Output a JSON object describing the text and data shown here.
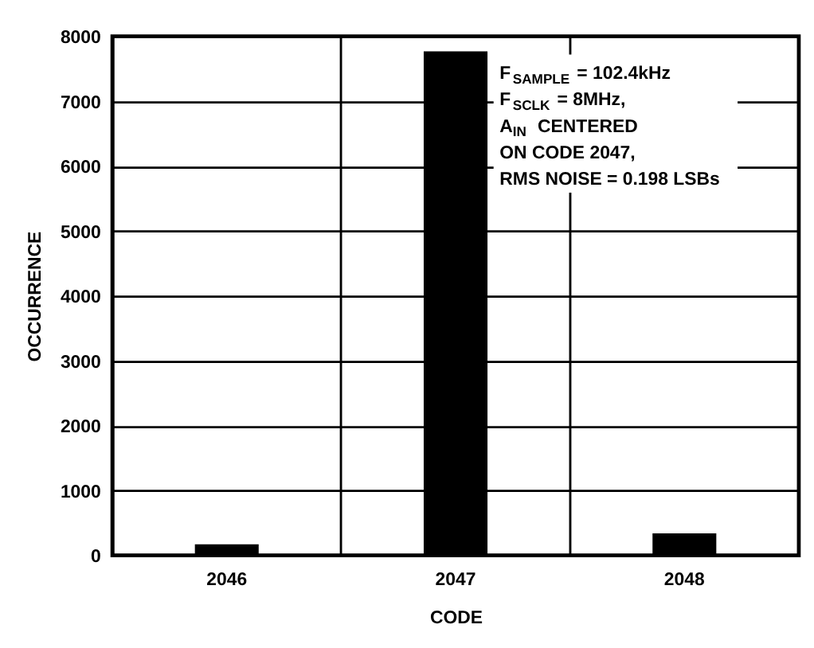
{
  "chart_data": {
    "type": "bar",
    "xlabel": "CODE",
    "ylabel": "OCCURRENCE",
    "categories": [
      "2046",
      "2047",
      "2048"
    ],
    "values": [
      170,
      7770,
      340
    ],
    "color": "#000000",
    "ylim": [
      0,
      8000
    ],
    "yticks": [
      0,
      1000,
      2000,
      3000,
      4000,
      5000,
      6000,
      7000,
      8000
    ],
    "grid": true,
    "annotations": [
      "F$_{SAMPLE}$ = 102.4kHz",
      "F$_{SCLK}$ = 8MHz,",
      "A$_{IN}$ CENTERED",
      "ON CODE 2047,",
      "RMS NOISE = 0.198 LSBs"
    ]
  }
}
